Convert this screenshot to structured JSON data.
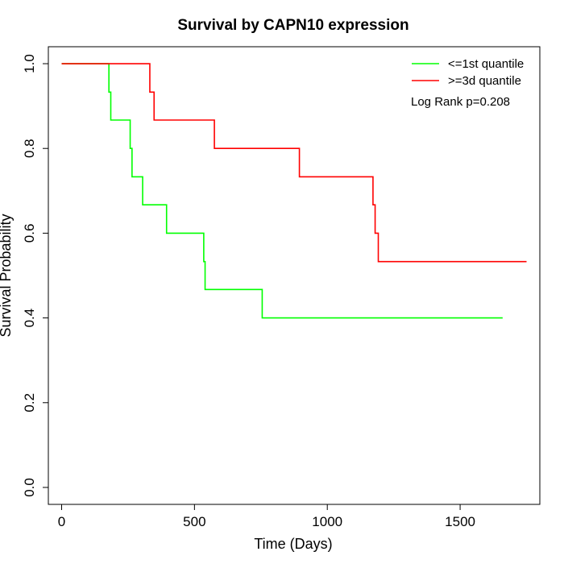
{
  "chart_data": {
    "type": "line",
    "title": "Survival by CAPN10 expression",
    "xlabel": "Time (Days)",
    "ylabel": "Survival Probability",
    "xlim": [
      -50,
      1800
    ],
    "ylim": [
      -0.04,
      1.04
    ],
    "xticks": [
      0,
      500,
      1000,
      1500
    ],
    "xtick_labels": [
      "0",
      "500",
      "1000",
      "1500"
    ],
    "yticks": [
      0.0,
      0.2,
      0.4,
      0.6,
      0.8,
      1.0
    ],
    "ytick_labels": [
      "0.0",
      "0.2",
      "0.4",
      "0.6",
      "0.8",
      "1.0"
    ],
    "grid": false,
    "legend_position": "top-right",
    "annotation": "Log Rank p=0.208",
    "series": [
      {
        "name": "<=1st quantile",
        "color": "#00ff00",
        "step_type": "post",
        "x": [
          0,
          178,
          185,
          258,
          265,
          305,
          395,
          535,
          540,
          755,
          1660
        ],
        "y": [
          1.0,
          0.933,
          0.867,
          0.8,
          0.733,
          0.667,
          0.6,
          0.533,
          0.467,
          0.4,
          0.4
        ]
      },
      {
        "name": ">=3d quantile",
        "color": "#ff0000",
        "step_type": "post",
        "x": [
          0,
          332,
          348,
          575,
          895,
          1172,
          1180,
          1192,
          1750
        ],
        "y": [
          1.0,
          0.933,
          0.867,
          0.8,
          0.733,
          0.667,
          0.6,
          0.533,
          0.533
        ]
      }
    ]
  }
}
